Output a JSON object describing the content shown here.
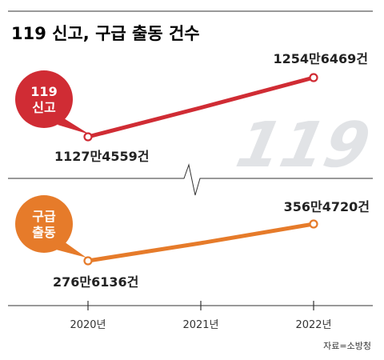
{
  "chart_data": {
    "type": "line",
    "title": "119 신고, 구급 출동 건수",
    "categories": [
      "2020년",
      "2021년",
      "2022년"
    ],
    "series": [
      {
        "name": "119 신고",
        "name_lines": [
          "119",
          "신고"
        ],
        "values": [
          11274559,
          11900000,
          12546469
        ],
        "labels": {
          "first": "1127만4559건",
          "last": "1254만6469건"
        },
        "color": "#d02c34"
      },
      {
        "name": "구급 출동",
        "name_lines": [
          "구급",
          "출동"
        ],
        "values": [
          2766136,
          3150000,
          3564720
        ],
        "labels": {
          "first": "276만6136건",
          "last": "356만4720건"
        },
        "color": "#e67b2a"
      }
    ],
    "axis_break": true,
    "source": "자료=소방청",
    "watermark": "119"
  }
}
